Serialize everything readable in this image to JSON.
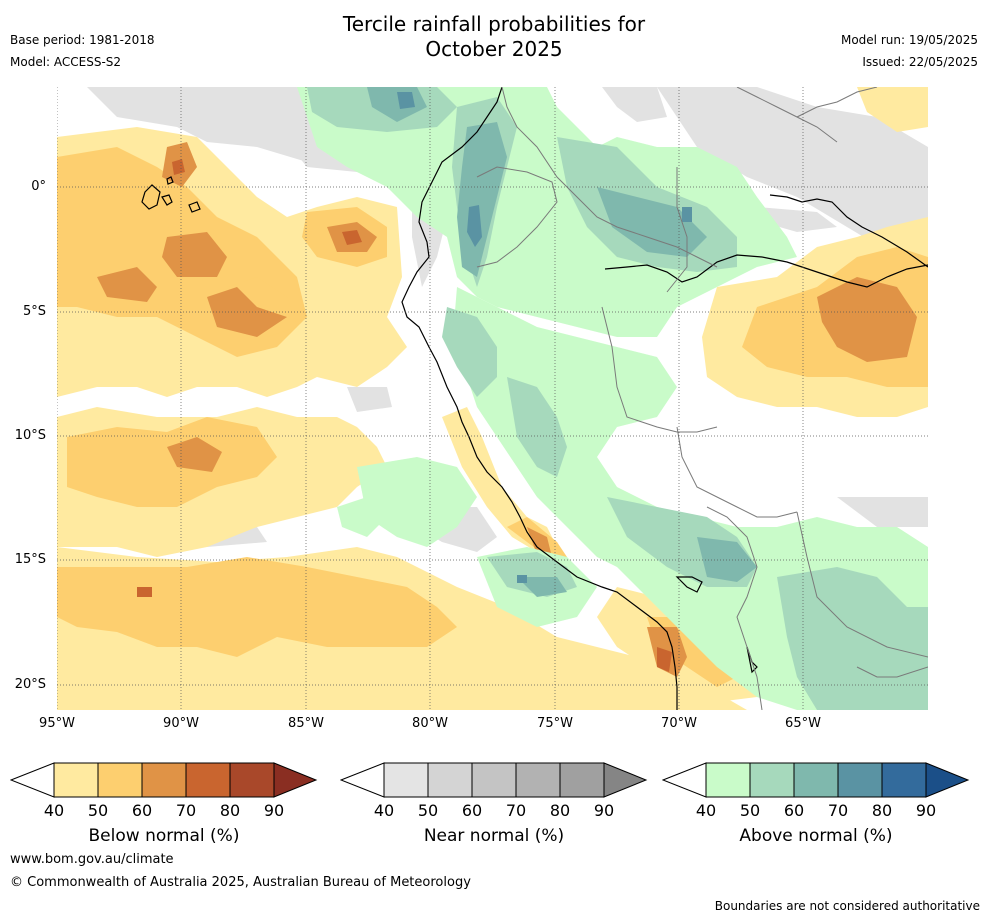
{
  "header": {
    "title_line1": "Tercile rainfall probabilities for",
    "title_line2": "October 2025",
    "base_period": "Base period: 1981-2018",
    "model": "Model: ACCESS-S2",
    "model_run": "Model run: 19/05/2025",
    "issued": "Issued: 22/05/2025"
  },
  "map": {
    "region": "Western South America and eastern Pacific",
    "lat_labels": [
      "0°",
      "5°S",
      "10°S",
      "15°S",
      "20°S"
    ],
    "lon_labels": [
      "95°W",
      "90°W",
      "85°W",
      "80°W",
      "75°W",
      "70°W",
      "65°W"
    ]
  },
  "legends": [
    {
      "title": "Below normal (%)",
      "ticks": [
        "40",
        "50",
        "60",
        "70",
        "80",
        "90"
      ],
      "colors": [
        "#ffffff",
        "#ffeaa0",
        "#fdcf6f",
        "#e09346",
        "#c9652f",
        "#a9482a",
        "#8a2e22"
      ]
    },
    {
      "title": "Near normal (%)",
      "ticks": [
        "40",
        "50",
        "60",
        "70",
        "80",
        "90"
      ],
      "colors": [
        "#ffffff",
        "#e4e4e4",
        "#d4d4d4",
        "#c4c4c4",
        "#b2b2b2",
        "#a0a0a0",
        "#858585"
      ]
    },
    {
      "title": "Above normal (%)",
      "ticks": [
        "40",
        "50",
        "60",
        "70",
        "80",
        "90"
      ],
      "colors": [
        "#ffffff",
        "#c9fbc9",
        "#a6d9bc",
        "#7fb8ad",
        "#5a93a3",
        "#336b9c",
        "#1b4f88"
      ]
    }
  ],
  "footer": {
    "url": "www.bom.gov.au/climate",
    "copyright": "© Commonwealth of Australia 2025, Australian Bureau of Meteorology",
    "disclaimer": "Boundaries are not considered authoritative"
  }
}
